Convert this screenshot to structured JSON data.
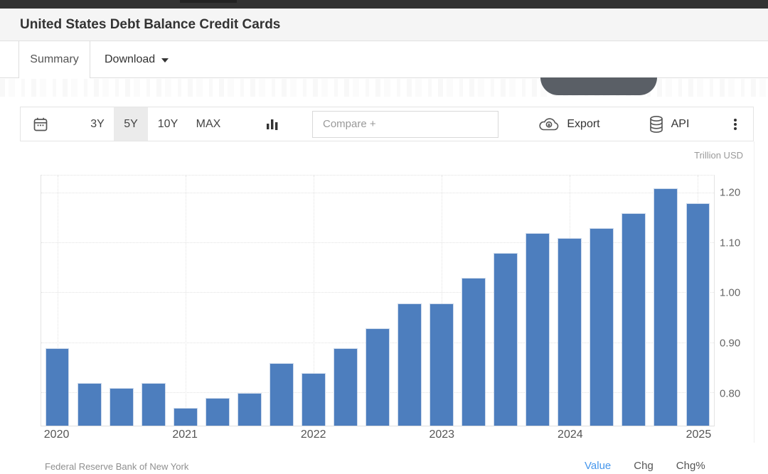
{
  "header": {
    "title": "United States Debt Balance Credit Cards"
  },
  "tabs": {
    "summary": "Summary",
    "download": "Download"
  },
  "toolbar": {
    "ranges": [
      {
        "label": "3Y",
        "active": false
      },
      {
        "label": "5Y",
        "active": true
      },
      {
        "label": "10Y",
        "active": false
      },
      {
        "label": "MAX",
        "active": false
      }
    ],
    "compare_placeholder": "Compare +",
    "export_label": "Export",
    "api_label": "API",
    "icons": [
      "calendar-icon",
      "column-chart-icon",
      "cloud-download-icon",
      "database-icon",
      "kebab-menu-icon"
    ]
  },
  "chart": {
    "unit_label": "Trillion USD",
    "source": "Federal Reserve Bank of New York",
    "footer_links": [
      {
        "label": "Value",
        "active": true,
        "color": "#4596ec"
      },
      {
        "label": "Chg",
        "active": false,
        "color": "#555555"
      },
      {
        "label": "Chg%",
        "active": false,
        "color": "#555555"
      }
    ]
  },
  "chart_data": {
    "type": "bar",
    "title": "United States Debt Balance Credit Cards",
    "ylabel": "Trillion USD",
    "source": "Federal Reserve Bank of New York",
    "categories": [
      "2020-Q1",
      "2020-Q2",
      "2020-Q3",
      "2020-Q4",
      "2021-Q1",
      "2021-Q2",
      "2021-Q3",
      "2021-Q4",
      "2022-Q1",
      "2022-Q2",
      "2022-Q3",
      "2022-Q4",
      "2023-Q1",
      "2023-Q2",
      "2023-Q3",
      "2023-Q4",
      "2024-Q1",
      "2024-Q2",
      "2024-Q3",
      "2024-Q4",
      "2025-Q1"
    ],
    "values": [
      0.89,
      0.82,
      0.81,
      0.82,
      0.77,
      0.79,
      0.8,
      0.86,
      0.84,
      0.89,
      0.93,
      0.98,
      0.98,
      1.03,
      1.08,
      1.12,
      1.11,
      1.13,
      1.16,
      1.21,
      1.18
    ],
    "bar_color": "#4d7ebe",
    "ylim": [
      0.735,
      1.235
    ],
    "y_ticks": [
      0.8,
      0.9,
      1.0,
      1.1,
      1.2
    ],
    "x_tick_labels": [
      "2020",
      "2021",
      "2022",
      "2023",
      "2024",
      "2025"
    ],
    "x_tick_indices": [
      0,
      4,
      8,
      12,
      16,
      20
    ],
    "grid": "dotted",
    "legend": "none",
    "axis_side": "right"
  }
}
